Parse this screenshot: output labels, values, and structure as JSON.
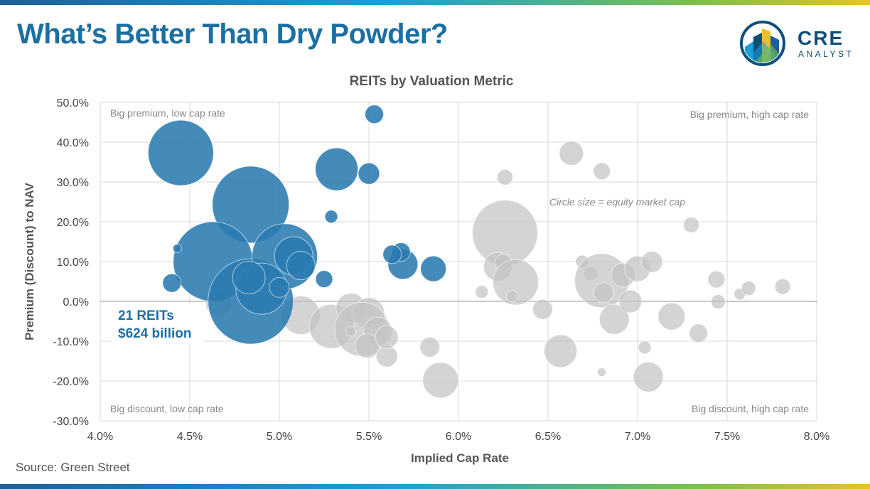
{
  "page": {
    "title": "What’s Better Than Dry Powder?",
    "source": "Source: Green Street",
    "logo": {
      "word": "CRE",
      "sub": "ANALYST",
      "icon": "building-chart-icon"
    }
  },
  "colors": {
    "accent": "#1c6fa3",
    "highlight": "#2a7bb0",
    "other": "#c4c4c4"
  },
  "chart_data": {
    "type": "scatter",
    "title": "REITs by Valuation Metric",
    "xlabel": "Implied Cap Rate",
    "ylabel": "Premium (Discount) to NAV",
    "xlim": [
      0.04,
      0.08
    ],
    "ylim": [
      -0.3,
      0.5
    ],
    "xticks": [
      "4.0%",
      "4.5%",
      "5.0%",
      "5.5%",
      "6.0%",
      "6.5%",
      "7.0%",
      "7.5%",
      "8.0%"
    ],
    "yticks": [
      "50.0%",
      "40.0%",
      "30.0%",
      "20.0%",
      "10.0%",
      "0.0%",
      "-10.0%",
      "-20.0%",
      "-30.0%"
    ],
    "grid": true,
    "quadrant_labels": {
      "top_left": "Big premium, low cap rate",
      "top_right": "Big premium, high cap rate",
      "bottom_left": "Big discount, low cap rate",
      "bottom_right": "Big discount, high cap rate"
    },
    "size_note": "Circle size = equity market cap",
    "callout": {
      "line1": "21 REITs",
      "line2": "$624 billion"
    },
    "series": [
      {
        "group": "highlight",
        "points": [
          {
            "x": 0.0445,
            "y": 0.373,
            "size": 46
          },
          {
            "x": 0.0484,
            "y": 0.243,
            "size": 54
          },
          {
            "x": 0.0463,
            "y": 0.1,
            "size": 56
          },
          {
            "x": 0.0484,
            "y": 0.0,
            "size": 60
          },
          {
            "x": 0.0503,
            "y": 0.113,
            "size": 46
          },
          {
            "x": 0.049,
            "y": 0.032,
            "size": 36
          },
          {
            "x": 0.0508,
            "y": 0.114,
            "size": 27
          },
          {
            "x": 0.0512,
            "y": 0.09,
            "size": 20
          },
          {
            "x": 0.0483,
            "y": 0.06,
            "size": 23
          },
          {
            "x": 0.0532,
            "y": 0.332,
            "size": 30
          },
          {
            "x": 0.055,
            "y": 0.321,
            "size": 15
          },
          {
            "x": 0.0553,
            "y": 0.47,
            "size": 13
          },
          {
            "x": 0.0529,
            "y": 0.213,
            "size": 9
          },
          {
            "x": 0.0525,
            "y": 0.056,
            "size": 12
          },
          {
            "x": 0.0569,
            "y": 0.093,
            "size": 21
          },
          {
            "x": 0.0568,
            "y": 0.124,
            "size": 13
          },
          {
            "x": 0.0563,
            "y": 0.118,
            "size": 13
          },
          {
            "x": 0.0586,
            "y": 0.082,
            "size": 18
          },
          {
            "x": 0.044,
            "y": 0.046,
            "size": 13
          },
          {
            "x": 0.0443,
            "y": 0.133,
            "size": 6
          },
          {
            "x": 0.05,
            "y": 0.035,
            "size": 14
          }
        ]
      },
      {
        "group": "other",
        "points": [
          {
            "x": 0.0466,
            "y": -0.005,
            "size": 18
          },
          {
            "x": 0.0512,
            "y": -0.035,
            "size": 27
          },
          {
            "x": 0.0529,
            "y": -0.063,
            "size": 31
          },
          {
            "x": 0.054,
            "y": -0.017,
            "size": 21
          },
          {
            "x": 0.055,
            "y": -0.03,
            "size": 22
          },
          {
            "x": 0.0546,
            "y": -0.07,
            "size": 38
          },
          {
            "x": 0.0555,
            "y": -0.075,
            "size": 20
          },
          {
            "x": 0.0549,
            "y": -0.112,
            "size": 17
          },
          {
            "x": 0.056,
            "y": -0.138,
            "size": 15
          },
          {
            "x": 0.056,
            "y": -0.09,
            "size": 16
          },
          {
            "x": 0.059,
            "y": -0.198,
            "size": 25
          },
          {
            "x": 0.0584,
            "y": -0.115,
            "size": 14
          },
          {
            "x": 0.054,
            "y": -0.075,
            "size": 7
          },
          {
            "x": 0.0613,
            "y": 0.024,
            "size": 9
          },
          {
            "x": 0.0626,
            "y": 0.172,
            "size": 46
          },
          {
            "x": 0.0626,
            "y": 0.312,
            "size": 11
          },
          {
            "x": 0.0622,
            "y": 0.087,
            "size": 20
          },
          {
            "x": 0.0625,
            "y": 0.097,
            "size": 12
          },
          {
            "x": 0.0632,
            "y": 0.048,
            "size": 32
          },
          {
            "x": 0.063,
            "y": 0.013,
            "size": 8
          },
          {
            "x": 0.0647,
            "y": -0.02,
            "size": 14
          },
          {
            "x": 0.0663,
            "y": 0.372,
            "size": 17
          },
          {
            "x": 0.068,
            "y": 0.327,
            "size": 12
          },
          {
            "x": 0.0657,
            "y": -0.125,
            "size": 23
          },
          {
            "x": 0.0669,
            "y": 0.1,
            "size": 9
          },
          {
            "x": 0.0674,
            "y": 0.07,
            "size": 10
          },
          {
            "x": 0.068,
            "y": 0.052,
            "size": 38
          },
          {
            "x": 0.0681,
            "y": 0.022,
            "size": 14
          },
          {
            "x": 0.068,
            "y": -0.178,
            "size": 6
          },
          {
            "x": 0.0687,
            "y": -0.045,
            "size": 21
          },
          {
            "x": 0.0692,
            "y": 0.066,
            "size": 17
          },
          {
            "x": 0.0696,
            "y": 0.0,
            "size": 16
          },
          {
            "x": 0.07,
            "y": 0.082,
            "size": 18
          },
          {
            "x": 0.0708,
            "y": 0.099,
            "size": 15
          },
          {
            "x": 0.0706,
            "y": -0.19,
            "size": 21
          },
          {
            "x": 0.0704,
            "y": -0.116,
            "size": 9
          },
          {
            "x": 0.0719,
            "y": -0.038,
            "size": 19
          },
          {
            "x": 0.073,
            "y": 0.192,
            "size": 11
          },
          {
            "x": 0.0734,
            "y": -0.08,
            "size": 13
          },
          {
            "x": 0.0744,
            "y": 0.055,
            "size": 12
          },
          {
            "x": 0.0745,
            "y": -0.001,
            "size": 10
          },
          {
            "x": 0.0757,
            "y": 0.018,
            "size": 8
          },
          {
            "x": 0.0762,
            "y": 0.033,
            "size": 10
          },
          {
            "x": 0.0781,
            "y": 0.037,
            "size": 11
          }
        ]
      }
    ]
  }
}
